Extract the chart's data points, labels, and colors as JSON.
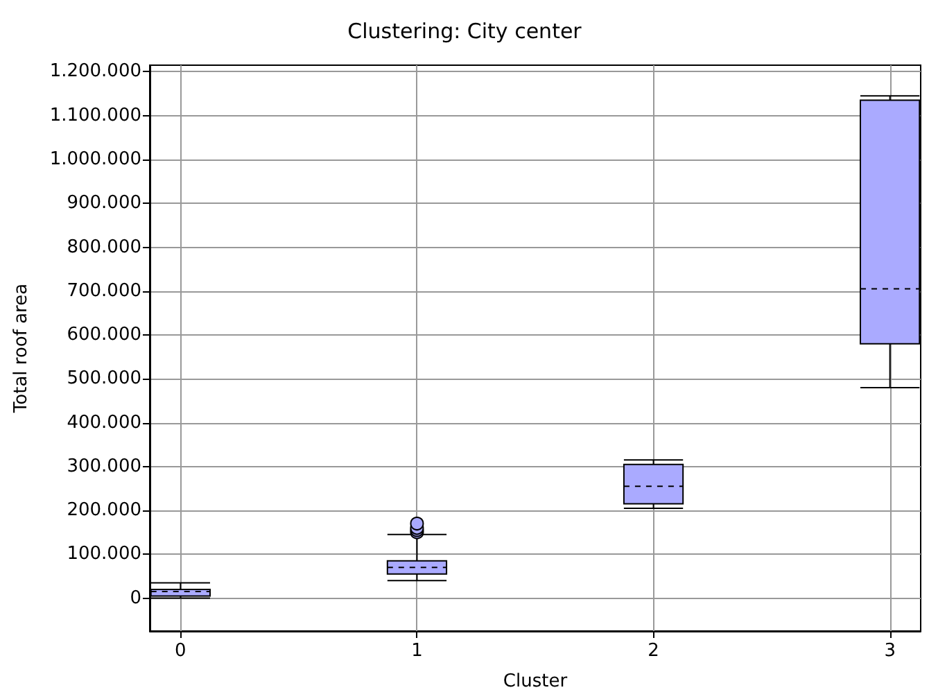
{
  "chart_data": {
    "type": "box",
    "title": "Clustering: City center",
    "xlabel": "Cluster",
    "ylabel": "Total roof area",
    "x": [
      0,
      1,
      2,
      3
    ],
    "xlim": [
      -0.13,
      3.13
    ],
    "xticks": [
      0,
      1,
      2,
      3
    ],
    "ylim": [
      -75000,
      1215000
    ],
    "yticks": [
      0,
      {
        "value": 100000,
        "label": "100.000"
      },
      {
        "value": 200000,
        "label": "200.000"
      },
      {
        "value": 300000,
        "label": "300.000"
      },
      {
        "value": 400000,
        "label": "400.000"
      },
      {
        "value": 500000,
        "label": "500.000"
      },
      {
        "value": 600000,
        "label": "600.000"
      },
      {
        "value": 700000,
        "label": "700.000"
      },
      {
        "value": 800000,
        "label": "800.000"
      },
      {
        "value": 900000,
        "label": "900.000"
      },
      {
        "value": 1000000,
        "label": "1.000.000"
      },
      {
        "value": 1100000,
        "label": "1.100.000"
      },
      {
        "value": 1200000,
        "label": "1.200.000"
      }
    ],
    "color": "#aaaaff",
    "grid": true,
    "boxes": [
      {
        "low": 0,
        "q1": 5000,
        "median": 15000,
        "q3": 20000,
        "high": 35000
      },
      {
        "low": 40000,
        "q1": 55000,
        "median": 70000,
        "q3": 85000,
        "high": 145000,
        "outliers": [
          150000,
          155000,
          160000,
          170000
        ]
      },
      {
        "low": 205000,
        "q1": 215000,
        "median": 255000,
        "q3": 305000,
        "high": 315000
      },
      {
        "low": 480000,
        "q1": 580000,
        "median": 705000,
        "q3": 1135000,
        "high": 1145000
      }
    ]
  }
}
